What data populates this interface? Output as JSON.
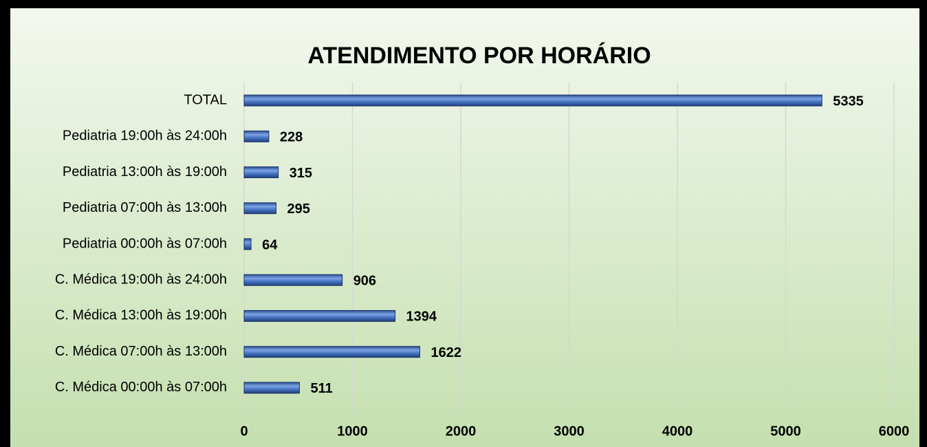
{
  "chart_data": {
    "type": "bar",
    "orientation": "horizontal",
    "title": "ATENDIMENTO POR HORÁRIO",
    "categories": [
      "TOTAL",
      "Pediatria 19:00h às 24:00h",
      "Pediatria 13:00h às 19:00h",
      "Pediatria 07:00h às 13:00h",
      "Pediatria 00:00h às 07:00h",
      "C. Médica 19:00h às 24:00h",
      "C. Médica 13:00h às 19:00h",
      "C. Médica 07:00h às 13:00h",
      "C. Médica 00:00h às 07:00h"
    ],
    "values": [
      5335,
      228,
      315,
      295,
      64,
      906,
      1394,
      1622,
      511
    ],
    "color": "#4472c4",
    "xlim": [
      0,
      6000
    ],
    "xticks": [
      0,
      1000,
      2000,
      3000,
      4000,
      5000,
      6000
    ],
    "grid": true
  }
}
